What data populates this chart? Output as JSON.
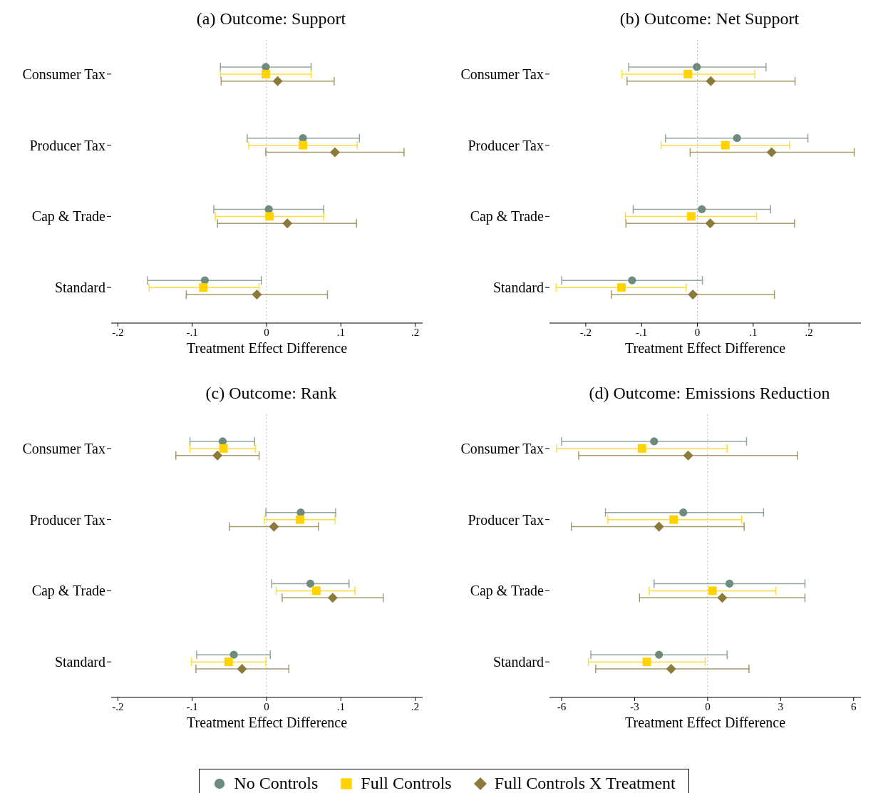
{
  "chart_data": [
    {
      "type": "scatter",
      "title": "(a) Outcome: Support",
      "xlabel": "Treatment Effect Difference",
      "orientation": "horizontal",
      "categories": [
        "Consumer Tax",
        "Producer Tax",
        "Cap & Trade",
        "Standard"
      ],
      "xlim": [
        -0.209,
        0.21
      ],
      "xticks": [
        {
          "value": -0.2,
          "label": "-.2"
        },
        {
          "value": -0.1,
          "label": "-.1"
        },
        0,
        {
          "value": 0.1,
          "label": ".1"
        },
        {
          "value": 0.2,
          "label": ".2"
        }
      ],
      "grid": false,
      "legend": "bottom",
      "ref_lines": [
        {
          "axis": "x",
          "value": 0,
          "color": "#bbbbbb",
          "line_style": "dotted"
        }
      ],
      "series": [
        {
          "name": "No Controls",
          "color": "#6e8b7b",
          "marker": "circle",
          "values": [
            -0.001,
            0.049,
            0.003,
            -0.083
          ],
          "errors": [
            [
              -0.062,
              0.06
            ],
            [
              -0.026,
              0.125
            ],
            [
              -0.071,
              0.077
            ],
            [
              -0.16,
              -0.007
            ]
          ]
        },
        {
          "name": "Full Controls",
          "color": "#ffd200",
          "marker": "square",
          "values": [
            -0.001,
            0.049,
            0.004,
            -0.085
          ],
          "errors": [
            [
              -0.062,
              0.06
            ],
            [
              -0.024,
              0.122
            ],
            [
              -0.069,
              0.077
            ],
            [
              -0.158,
              -0.01
            ]
          ]
        },
        {
          "name": "Full Controls X Treatment",
          "color": "#8c7a3a",
          "marker": "diamond",
          "values": [
            0.015,
            0.092,
            0.028,
            -0.013
          ],
          "errors": [
            [
              -0.061,
              0.091
            ],
            [
              -0.001,
              0.185
            ],
            [
              -0.066,
              0.121
            ],
            [
              -0.108,
              0.082
            ]
          ]
        }
      ]
    },
    {
      "type": "scatter",
      "title": "(b) Outcome: Net Support",
      "xlabel": "Treatment Effect Difference",
      "orientation": "horizontal",
      "categories": [
        "Consumer Tax",
        "Producer Tax",
        "Cap & Trade",
        "Standard"
      ],
      "xlim": [
        -0.265,
        0.293
      ],
      "xticks": [
        {
          "value": -0.2,
          "label": "-.2"
        },
        {
          "value": -0.1,
          "label": "-.1"
        },
        0,
        {
          "value": 0.1,
          "label": ".1"
        },
        {
          "value": 0.2,
          "label": ".2"
        }
      ],
      "grid": false,
      "ref_lines": [
        {
          "axis": "x",
          "value": 0,
          "color": "#bbbbbb",
          "line_style": "dotted"
        }
      ],
      "series": [
        {
          "color": "#6e8b7b",
          "marker": "circle",
          "values": [
            -0.001,
            0.071,
            0.008,
            -0.117
          ],
          "errors": [
            [
              -0.123,
              0.123
            ],
            [
              -0.057,
              0.198
            ],
            [
              -0.115,
              0.131
            ],
            [
              -0.243,
              0.009
            ]
          ]
        },
        {
          "color": "#ffd200",
          "marker": "square",
          "values": [
            -0.017,
            0.05,
            -0.011,
            -0.136
          ],
          "errors": [
            [
              -0.135,
              0.103
            ],
            [
              -0.065,
              0.165
            ],
            [
              -0.129,
              0.106
            ],
            [
              -0.253,
              -0.02
            ]
          ]
        },
        {
          "color": "#8c7a3a",
          "marker": "diamond",
          "values": [
            0.024,
            0.133,
            0.023,
            -0.008
          ],
          "errors": [
            [
              -0.126,
              0.175
            ],
            [
              -0.013,
              0.281
            ],
            [
              -0.128,
              0.174
            ],
            [
              -0.154,
              0.138
            ]
          ]
        }
      ]
    },
    {
      "type": "scatter",
      "title": "(c) Outcome: Rank",
      "xlabel": "Treatment Effect Difference",
      "orientation": "horizontal",
      "categories": [
        "Consumer Tax",
        "Producer Tax",
        "Cap & Trade",
        "Standard"
      ],
      "xlim": [
        -0.209,
        0.21
      ],
      "xticks": [
        {
          "value": -0.2,
          "label": "-.2"
        },
        {
          "value": -0.1,
          "label": "-.1"
        },
        0,
        {
          "value": 0.1,
          "label": ".1"
        },
        {
          "value": 0.2,
          "label": ".2"
        }
      ],
      "grid": false,
      "ref_lines": [
        {
          "axis": "x",
          "value": 0,
          "color": "#bbbbbb",
          "line_style": "dotted"
        }
      ],
      "series": [
        {
          "color": "#6e8b7b",
          "marker": "circle",
          "values": [
            -0.059,
            0.046,
            0.059,
            -0.044
          ],
          "errors": [
            [
              -0.103,
              -0.016
            ],
            [
              -0.001,
              0.093
            ],
            [
              0.007,
              0.111
            ],
            [
              -0.094,
              0.005
            ]
          ]
        },
        {
          "color": "#ffd200",
          "marker": "square",
          "values": [
            -0.058,
            0.045,
            0.067,
            -0.051
          ],
          "errors": [
            [
              -0.103,
              -0.015
            ],
            [
              -0.003,
              0.092
            ],
            [
              0.013,
              0.119
            ],
            [
              -0.101,
              -0.001
            ]
          ]
        },
        {
          "color": "#8c7a3a",
          "marker": "diamond",
          "values": [
            -0.066,
            0.01,
            0.089,
            -0.033
          ],
          "errors": [
            [
              -0.122,
              -0.01
            ],
            [
              -0.05,
              0.07
            ],
            [
              0.021,
              0.157
            ],
            [
              -0.095,
              0.03
            ]
          ]
        }
      ]
    },
    {
      "type": "scatter",
      "title": "(d) Outcome: Emissions Reduction",
      "xlabel": "Treatment Effect Difference",
      "orientation": "horizontal",
      "categories": [
        "Consumer Tax",
        "Producer Tax",
        "Cap & Trade",
        "Standard"
      ],
      "xlim": [
        -6.5,
        6.3
      ],
      "xticks": [
        -6,
        -3,
        0,
        3,
        6
      ],
      "grid": false,
      "ref_lines": [
        {
          "axis": "x",
          "value": 0,
          "color": "#bbbbbb",
          "line_style": "dotted"
        }
      ],
      "series": [
        {
          "color": "#6e8b7b",
          "marker": "circle",
          "values": [
            -2.2,
            -1.0,
            0.9,
            -2.0
          ],
          "errors": [
            [
              -6.0,
              1.6
            ],
            [
              -4.2,
              2.3
            ],
            [
              -2.2,
              4.0
            ],
            [
              -4.8,
              0.8
            ]
          ]
        },
        {
          "color": "#ffd200",
          "marker": "square",
          "values": [
            -2.7,
            -1.4,
            0.2,
            -2.5
          ],
          "errors": [
            [
              -6.2,
              0.8
            ],
            [
              -4.1,
              1.4
            ],
            [
              -2.4,
              2.8
            ],
            [
              -4.9,
              -0.1
            ]
          ]
        },
        {
          "color": "#8c7a3a",
          "marker": "diamond",
          "values": [
            -0.8,
            -2.0,
            0.6,
            -1.5
          ],
          "errors": [
            [
              -5.3,
              3.7
            ],
            [
              -5.6,
              1.5
            ],
            [
              -2.8,
              4.0
            ],
            [
              -4.6,
              1.7
            ]
          ]
        }
      ]
    }
  ]
}
